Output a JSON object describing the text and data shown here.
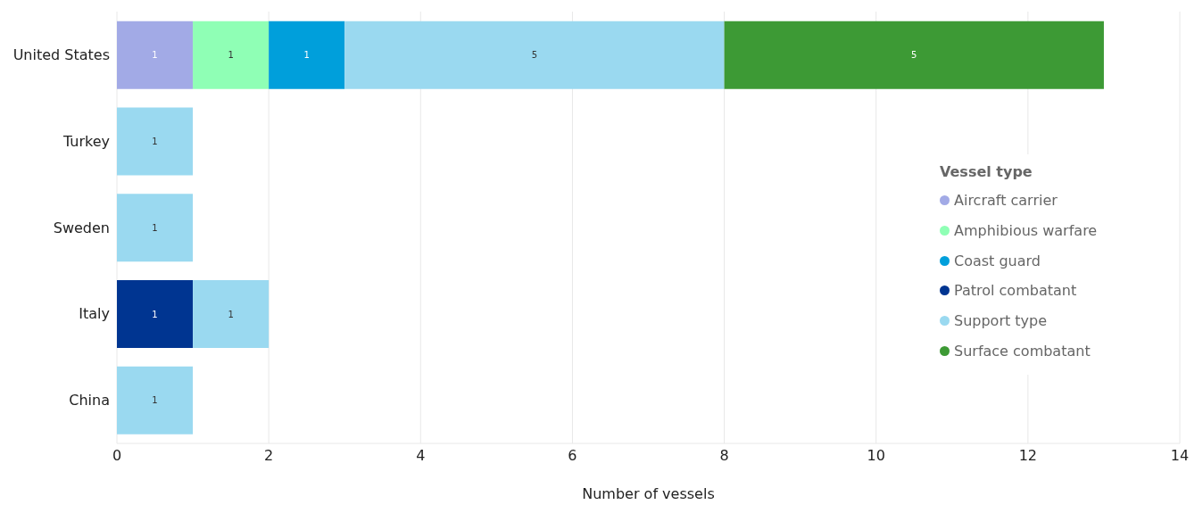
{
  "chart_data": {
    "type": "bar",
    "orientation": "horizontal",
    "stacked": true,
    "xlabel": "Number of vessels",
    "legend_title": "Vessel type",
    "categories": [
      "United States",
      "Turkey",
      "Sweden",
      "Italy",
      "China"
    ],
    "series": [
      {
        "name": "Aircraft carrier",
        "color": "#a2aae6",
        "values": [
          1,
          null,
          null,
          null,
          null
        ]
      },
      {
        "name": "Amphibious warfare",
        "color": "#8fffb5",
        "values": [
          1,
          null,
          null,
          null,
          null
        ]
      },
      {
        "name": "Coast guard",
        "color": "#009fdb",
        "values": [
          1,
          null,
          null,
          null,
          null
        ]
      },
      {
        "name": "Patrol combatant",
        "color": "#003591",
        "values": [
          null,
          null,
          null,
          1,
          null
        ]
      },
      {
        "name": "Support type",
        "color": "#9ad9f0",
        "values": [
          5,
          1,
          1,
          1,
          1
        ]
      },
      {
        "name": "Surface combatant",
        "color": "#3d9a35",
        "values": [
          5,
          null,
          null,
          null,
          null
        ]
      }
    ],
    "xlim": [
      0,
      14
    ],
    "xticks": [
      0,
      2,
      4,
      6,
      8,
      10,
      12,
      14
    ],
    "grid": "x",
    "legend": "right",
    "data_labels": true
  }
}
